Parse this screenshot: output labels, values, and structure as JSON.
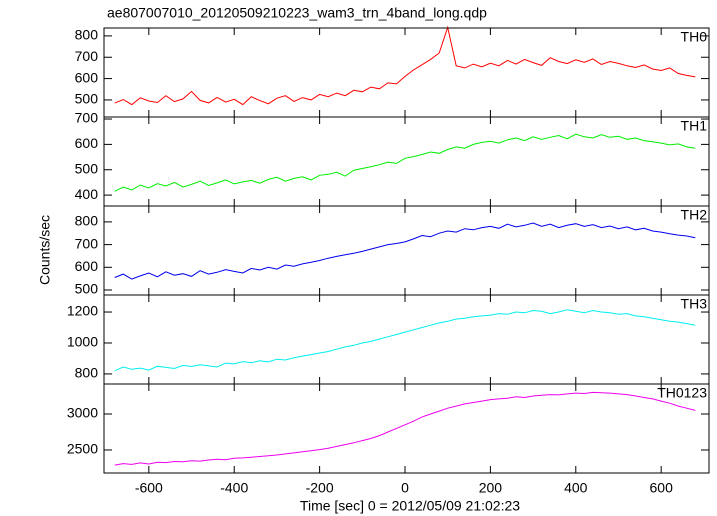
{
  "chart_data": {
    "type": "line",
    "title": "ae807007010_20120509210223_wam3_trn_4band_long.qdp",
    "xlabel": "Time [sec] 0 = 2012/05/09 21:02:23",
    "ylabel": "Counts/sec",
    "xlim": [
      -705,
      712
    ],
    "xticks": [
      -600,
      -400,
      -200,
      0,
      200,
      400,
      600
    ],
    "x": [
      -680,
      -660,
      -640,
      -620,
      -600,
      -580,
      -560,
      -540,
      -520,
      -500,
      -480,
      -460,
      -440,
      -420,
      -400,
      -380,
      -360,
      -340,
      -320,
      -300,
      -280,
      -260,
      -240,
      -220,
      -200,
      -180,
      -160,
      -140,
      -120,
      -100,
      -80,
      -60,
      -40,
      -20,
      0,
      20,
      40,
      60,
      80,
      100,
      120,
      140,
      160,
      180,
      200,
      220,
      240,
      260,
      280,
      300,
      320,
      340,
      360,
      380,
      400,
      420,
      440,
      460,
      480,
      500,
      520,
      540,
      560,
      580,
      600,
      620,
      640,
      660,
      680
    ],
    "panels": [
      {
        "name": "TH0",
        "color": "#ff0000",
        "ylim": [
          420,
          837
        ],
        "yticks": [
          500,
          600,
          700,
          800
        ],
        "values": [
          485,
          502,
          478,
          510,
          495,
          488,
          520,
          492,
          505,
          540,
          498,
          486,
          512,
          490,
          503,
          478,
          515,
          497,
          482,
          508,
          520,
          493,
          511,
          500,
          526,
          515,
          532,
          520,
          545,
          538,
          560,
          552,
          580,
          575,
          610,
          640,
          665,
          690,
          720,
          840,
          660,
          650,
          668,
          655,
          672,
          660,
          685,
          668,
          690,
          675,
          662,
          698,
          680,
          670,
          688,
          676,
          692,
          666,
          680,
          671,
          660,
          652,
          664,
          645,
          638,
          650,
          624,
          615,
          608
        ]
      },
      {
        "name": "TH1",
        "color": "#00ee00",
        "ylim": [
          357,
          708
        ],
        "yticks": [
          400,
          500,
          600,
          700
        ],
        "values": [
          415,
          432,
          420,
          440,
          428,
          445,
          436,
          450,
          432,
          442,
          455,
          438,
          448,
          460,
          444,
          452,
          458,
          447,
          462,
          470,
          455,
          466,
          472,
          460,
          478,
          482,
          490,
          475,
          498,
          505,
          512,
          520,
          530,
          525,
          545,
          552,
          560,
          570,
          565,
          580,
          590,
          585,
          600,
          608,
          612,
          605,
          618,
          625,
          615,
          630,
          620,
          628,
          635,
          622,
          640,
          630,
          625,
          638,
          628,
          632,
          620,
          625,
          615,
          610,
          605,
          598,
          602,
          590,
          585
        ]
      },
      {
        "name": "TH2",
        "color": "#0000ee",
        "ylim": [
          478,
          870
        ],
        "yticks": [
          500,
          600,
          700,
          800
        ],
        "values": [
          555,
          570,
          548,
          562,
          575,
          558,
          580,
          565,
          572,
          560,
          585,
          570,
          578,
          590,
          582,
          575,
          595,
          588,
          600,
          592,
          610,
          605,
          615,
          622,
          630,
          640,
          648,
          655,
          662,
          670,
          680,
          690,
          700,
          705,
          712,
          725,
          740,
          735,
          750,
          760,
          755,
          770,
          765,
          775,
          780,
          772,
          790,
          778,
          785,
          795,
          780,
          790,
          775,
          785,
          792,
          780,
          788,
          775,
          782,
          770,
          778,
          765,
          772,
          760,
          755,
          748,
          742,
          738,
          730
        ]
      },
      {
        "name": "TH3",
        "color": "#00eeee",
        "ylim": [
          735,
          1310
        ],
        "yticks": [
          800,
          1000,
          1200
        ],
        "values": [
          820,
          845,
          830,
          838,
          825,
          850,
          842,
          835,
          855,
          848,
          860,
          852,
          845,
          870,
          865,
          880,
          872,
          885,
          878,
          895,
          890,
          905,
          915,
          925,
          935,
          945,
          960,
          975,
          985,
          1000,
          1010,
          1025,
          1040,
          1055,
          1070,
          1085,
          1100,
          1115,
          1130,
          1140,
          1155,
          1160,
          1170,
          1175,
          1180,
          1190,
          1185,
          1200,
          1195,
          1210,
          1205,
          1190,
          1200,
          1215,
          1205,
          1195,
          1210,
          1200,
          1195,
          1185,
          1190,
          1175,
          1170,
          1160,
          1150,
          1140,
          1135,
          1125,
          1115
        ]
      },
      {
        "name": "TH0123",
        "color": "#ee00ee",
        "ylim": [
          2180,
          3417
        ],
        "yticks": [
          2500,
          3000
        ],
        "values": [
          2290,
          2310,
          2300,
          2320,
          2305,
          2330,
          2325,
          2340,
          2335,
          2350,
          2345,
          2360,
          2370,
          2365,
          2385,
          2390,
          2400,
          2410,
          2420,
          2430,
          2445,
          2460,
          2475,
          2490,
          2505,
          2525,
          2550,
          2575,
          2600,
          2630,
          2660,
          2700,
          2750,
          2800,
          2850,
          2900,
          2960,
          3000,
          3040,
          3080,
          3110,
          3140,
          3160,
          3180,
          3200,
          3210,
          3220,
          3240,
          3230,
          3250,
          3260,
          3270,
          3265,
          3280,
          3290,
          3285,
          3300,
          3295,
          3290,
          3280,
          3270,
          3250,
          3230,
          3210,
          3180,
          3150,
          3110,
          3080,
          3050
        ]
      }
    ]
  }
}
